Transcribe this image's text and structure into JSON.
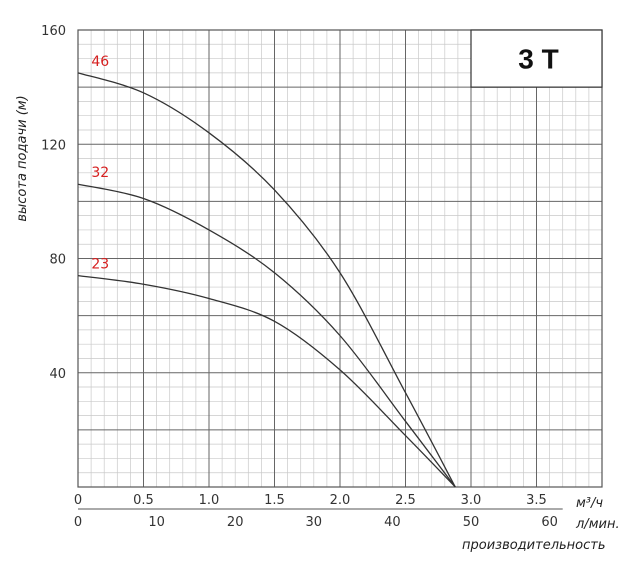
{
  "chart_data": {
    "type": "line",
    "model_label": "3 T",
    "ylabel": "высота подачи (м)",
    "xlabel": "производительность",
    "x_unit_m3h": "м³/ч",
    "x_unit_lmin": "л/мин.",
    "ylim": [
      0,
      160
    ],
    "xlim": [
      0,
      4.0
    ],
    "y_ticks": [
      "40",
      "80",
      "120",
      "160"
    ],
    "x_ticks_m3h": [
      "0",
      "0.5",
      "1.0",
      "1.5",
      "2.0",
      "2.5",
      "3.0",
      "3.5"
    ],
    "x_ticks_lmin": [
      "0",
      "10",
      "20",
      "30",
      "40",
      "50",
      "60"
    ],
    "grid": true,
    "series": [
      {
        "name": "46",
        "x": [
          0,
          0.5,
          1.0,
          1.5,
          2.0,
          2.5,
          2.88
        ],
        "y": [
          145,
          138,
          124,
          104,
          75,
          33,
          0
        ]
      },
      {
        "name": "32",
        "x": [
          0,
          0.5,
          1.0,
          1.5,
          2.0,
          2.5,
          2.88
        ],
        "y": [
          106,
          101,
          90,
          75,
          53,
          23,
          0
        ]
      },
      {
        "name": "23",
        "x": [
          0,
          0.5,
          1.0,
          1.5,
          2.0,
          2.5,
          2.88
        ],
        "y": [
          74,
          71,
          66,
          58,
          41,
          18,
          0
        ]
      }
    ]
  }
}
